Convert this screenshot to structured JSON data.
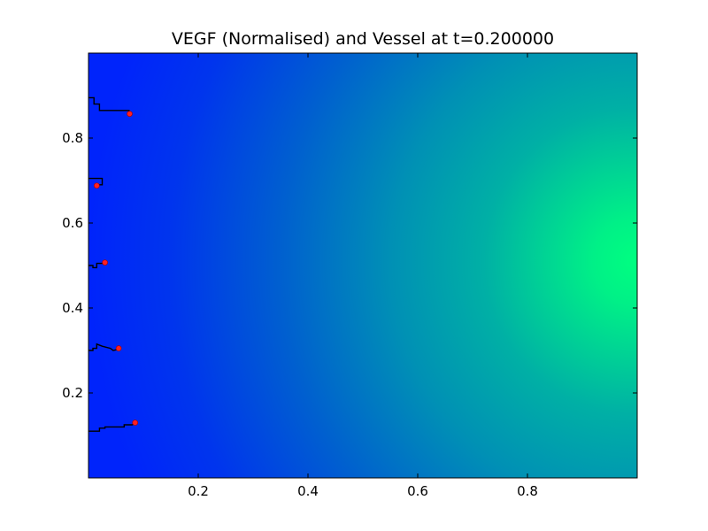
{
  "chart_data": {
    "type": "heatmap",
    "title": "VEGF (Normalised) and Vessel at t=0.200000",
    "xlabel": "",
    "ylabel": "",
    "xlim": [
      0,
      1
    ],
    "ylim": [
      0,
      1
    ],
    "grid": false,
    "legend": "none",
    "x_ticks": [
      {
        "value": 0.2,
        "label": "0.2"
      },
      {
        "value": 0.4,
        "label": "0.4"
      },
      {
        "value": 0.6,
        "label": "0.6"
      },
      {
        "value": 0.8,
        "label": "0.8"
      }
    ],
    "y_ticks": [
      {
        "value": 0.2,
        "label": "0.2"
      },
      {
        "value": 0.4,
        "label": "0.4"
      },
      {
        "value": 0.6,
        "label": "0.6"
      },
      {
        "value": 0.8,
        "label": "0.8"
      }
    ],
    "field": {
      "colormap": "winter",
      "low_color": "#0022ff",
      "high_color": "#00ff80",
      "max_location": [
        1.0,
        0.47
      ],
      "value_at_left_edge": 0.05,
      "value_at_center": 0.35,
      "value_at_max": 1.0
    },
    "vessels": [
      {
        "path": [
          [
            0,
            0.895
          ],
          [
            0.01,
            0.895
          ],
          [
            0.01,
            0.88
          ],
          [
            0.02,
            0.88
          ],
          [
            0.02,
            0.865
          ],
          [
            0.075,
            0.865
          ]
        ],
        "tip": [
          0.075,
          0.857
        ]
      },
      {
        "path": [
          [
            0,
            0.705
          ],
          [
            0.025,
            0.705
          ],
          [
            0.025,
            0.69
          ],
          [
            0.018,
            0.69
          ]
        ],
        "tip": [
          0.015,
          0.688
        ]
      },
      {
        "path": [
          [
            0,
            0.5
          ],
          [
            0.008,
            0.5
          ],
          [
            0.008,
            0.495
          ],
          [
            0.015,
            0.495
          ],
          [
            0.015,
            0.505
          ],
          [
            0.03,
            0.505
          ]
        ],
        "tip": [
          0.03,
          0.507
        ]
      },
      {
        "path": [
          [
            0,
            0.3
          ],
          [
            0.008,
            0.3
          ],
          [
            0.008,
            0.305
          ],
          [
            0.015,
            0.305
          ],
          [
            0.015,
            0.315
          ],
          [
            0.025,
            0.31
          ],
          [
            0.04,
            0.305
          ],
          [
            0.045,
            0.3
          ],
          [
            0.055,
            0.303
          ]
        ],
        "tip": [
          0.055,
          0.305
        ]
      },
      {
        "path": [
          [
            0,
            0.11
          ],
          [
            0.02,
            0.11
          ],
          [
            0.02,
            0.117
          ],
          [
            0.03,
            0.117
          ],
          [
            0.03,
            0.12
          ],
          [
            0.065,
            0.12
          ],
          [
            0.065,
            0.125
          ],
          [
            0.08,
            0.125
          ],
          [
            0.085,
            0.13
          ]
        ],
        "tip": [
          0.085,
          0.13
        ]
      }
    ]
  }
}
